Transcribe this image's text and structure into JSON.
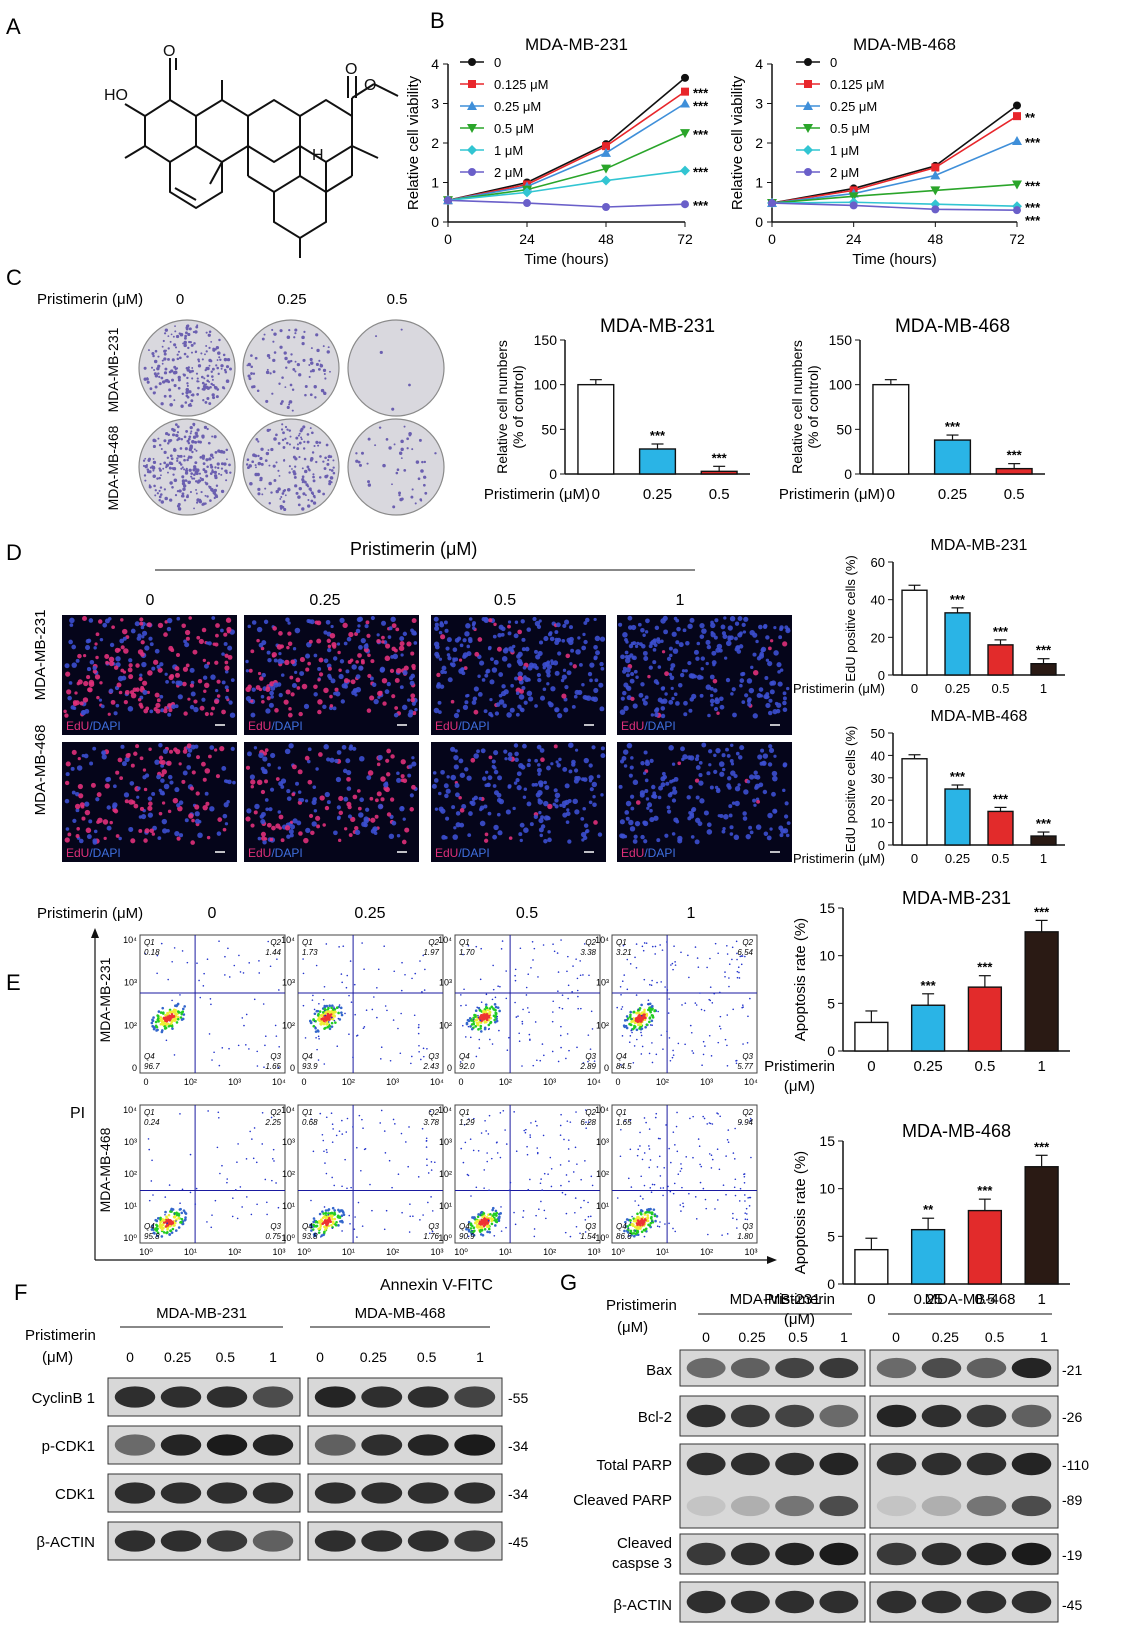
{
  "panel_labels": {
    "A": "A",
    "B": "B",
    "C": "C",
    "D": "D",
    "E": "E",
    "F": "F",
    "G": "G"
  },
  "colors": {
    "black": "#111111",
    "red": "#e8262b",
    "blue": "#3f8fd9",
    "green": "#2aa52a",
    "cyan": "#32c5d2",
    "purple": "#6a5fc9",
    "cyan_bar": "#2ab4e6",
    "red_bar": "#e22b2b",
    "dark_bar": "#2a1a14",
    "flow_quad": "#1a1aa0"
  },
  "B": {
    "ylabel": "Relative cell viability",
    "xlabel": "Time (hours)",
    "legend": [
      "0",
      "0.125 μM",
      "0.25 μM",
      "0.5 μM",
      "1 μM",
      "2 μM"
    ]
  },
  "C": {
    "treat_label": "Pristimerin (μM)",
    "doses": [
      "0",
      "0.25",
      "0.5"
    ],
    "rows": [
      "MDA-MB-231",
      "MDA-MB-468"
    ],
    "ylabel1": "Relative cell numbers",
    "ylabel2": "(% of control)"
  },
  "D": {
    "header": "Pristimerin (μM)",
    "doses": [
      "0",
      "0.25",
      "0.5",
      "1"
    ],
    "rows": [
      "MDA-MB-231",
      "MDA-MB-468"
    ],
    "stain_edu": "EdU",
    "stain_dapi": "/DAPI",
    "ylabel": "EdU positive cells (%)",
    "treat_label": "Pristimerin (μM)"
  },
  "E": {
    "treat_label": "Pristimerin (μM)",
    "doses": [
      "0",
      "0.25",
      "0.5",
      "1"
    ],
    "rows": [
      "MDA-MB-231",
      "MDA-MB-468"
    ],
    "pi_label": "PI",
    "annexin_label": "Annexin V-FITC",
    "ylabel": "Apoptosis rate (%)",
    "bar_treat1": "Pristimerin",
    "bar_treat2": "(μM)",
    "x_ticks_row1": [
      "0",
      "10²",
      "10³",
      "10⁴"
    ],
    "x_ticks_row2": [
      "10⁰",
      "10¹",
      "10²",
      "10³"
    ],
    "y_ticks_row1": [
      "10⁴",
      "10³",
      "10²",
      "0"
    ],
    "y_ticks_row2": [
      "10⁴",
      "10³",
      "10²",
      "10¹",
      "10⁰"
    ],
    "quadrants_231": [
      {
        "q1": "0.18",
        "q2": "1.44",
        "q3": "1.65",
        "q4": "96.7"
      },
      {
        "q1": "1.73",
        "q2": "1.97",
        "q3": "2.43",
        "q4": "93.9"
      },
      {
        "q1": "1.70",
        "q2": "3.38",
        "q3": "2.89",
        "q4": "92.0"
      },
      {
        "q1": "3.21",
        "q2": "6.54",
        "q3": "5.77",
        "q4": "84.5"
      }
    ],
    "quadrants_468": [
      {
        "q1": "0.24",
        "q2": "2.25",
        "q3": "0.75",
        "q4": "95.8"
      },
      {
        "q1": "0.68",
        "q2": "3.78",
        "q3": "1.76",
        "q4": "93.8"
      },
      {
        "q1": "1.29",
        "q2": "6.28",
        "q3": "1.54",
        "q4": "90.9"
      },
      {
        "q1": "1.65",
        "q2": "9.94",
        "q3": "1.80",
        "q4": "86.6"
      }
    ]
  },
  "F": {
    "treat1": "Pristimerin",
    "treat2": "(μM)",
    "groups": [
      "MDA-MB-231",
      "MDA-MB-468"
    ],
    "doses": [
      "0",
      "0.25",
      "0.5",
      "1"
    ],
    "proteins": [
      "CyclinB 1",
      "p-CDK1",
      "CDK1",
      "β-ACTIN"
    ],
    "mw": [
      "-55",
      "-34",
      "-34",
      "-45"
    ]
  },
  "G": {
    "treat1": "Pristimerin",
    "treat2": "(μM)",
    "groups": [
      "MDA-MB-231",
      "MDA-MB-468"
    ],
    "doses": [
      "0",
      "0.25",
      "0.5",
      "1"
    ],
    "proteins": [
      "Bax",
      "Bcl-2",
      "Total PARP",
      "Cleaved PARP",
      "Cleaved",
      "caspse 3",
      "β-ACTIN"
    ],
    "mw": [
      "-21",
      "-26",
      "-110",
      "-89",
      "-19",
      "-45"
    ]
  },
  "chart_data": [
    {
      "type": "line",
      "title": "MDA-MB-231",
      "xlabel": "Time (hours)",
      "ylabel": "Relative cell viability",
      "x": [
        0,
        24,
        48,
        72
      ],
      "xlim": [
        0,
        72
      ],
      "ylim": [
        0,
        4
      ],
      "legend": "top-left",
      "series": [
        {
          "name": "0",
          "values": [
            0.55,
            1.0,
            1.97,
            3.65
          ]
        },
        {
          "name": "0.125 μM",
          "values": [
            0.55,
            0.95,
            1.92,
            3.3
          ]
        },
        {
          "name": "0.25 μM",
          "values": [
            0.55,
            0.9,
            1.75,
            3.0
          ]
        },
        {
          "name": "0.5 μM",
          "values": [
            0.55,
            0.82,
            1.35,
            2.25
          ]
        },
        {
          "name": "1 μM",
          "values": [
            0.55,
            0.75,
            1.05,
            1.3
          ]
        },
        {
          "name": "2 μM",
          "values": [
            0.55,
            0.48,
            0.38,
            0.45
          ]
        }
      ],
      "annotations": [
        "***",
        "***",
        "***",
        "***",
        "***"
      ]
    },
    {
      "type": "line",
      "title": "MDA-MB-468",
      "xlabel": "Time (hours)",
      "ylabel": "Relative cell viability",
      "x": [
        0,
        24,
        48,
        72
      ],
      "xlim": [
        0,
        72
      ],
      "ylim": [
        0,
        4
      ],
      "legend": "top-left",
      "series": [
        {
          "name": "0",
          "values": [
            0.48,
            0.85,
            1.42,
            2.95
          ]
        },
        {
          "name": "0.125 μM",
          "values": [
            0.48,
            0.8,
            1.38,
            2.68
          ]
        },
        {
          "name": "0.25 μM",
          "values": [
            0.48,
            0.72,
            1.18,
            2.05
          ]
        },
        {
          "name": "0.5 μM",
          "values": [
            0.48,
            0.65,
            0.8,
            0.95
          ]
        },
        {
          "name": "1 μM",
          "values": [
            0.48,
            0.5,
            0.45,
            0.4
          ]
        },
        {
          "name": "2 μM",
          "values": [
            0.48,
            0.42,
            0.32,
            0.3
          ]
        }
      ],
      "annotations": [
        "**",
        "***",
        "***",
        "***",
        "***"
      ]
    },
    {
      "type": "bar",
      "title": "MDA-MB-231",
      "ylabel": "Relative cell numbers (% of control)",
      "categories": [
        "0",
        "0.25",
        "0.5"
      ],
      "values": [
        100,
        28,
        3
      ],
      "ylim": [
        0,
        150
      ],
      "sig": [
        "",
        "***",
        "***"
      ]
    },
    {
      "type": "bar",
      "title": "MDA-MB-468",
      "ylabel": "Relative cell numbers (% of control)",
      "categories": [
        "0",
        "0.25",
        "0.5"
      ],
      "values": [
        100,
        38,
        6
      ],
      "ylim": [
        0,
        150
      ],
      "sig": [
        "",
        "***",
        "***"
      ]
    },
    {
      "type": "bar",
      "title": "MDA-MB-231",
      "ylabel": "EdU positive cells (%)",
      "categories": [
        "0",
        "0.25",
        "0.5",
        "1"
      ],
      "values": [
        45,
        33,
        16,
        6
      ],
      "ylim": [
        0,
        60
      ],
      "sig": [
        "",
        "***",
        "***",
        "***"
      ]
    },
    {
      "type": "bar",
      "title": "MDA-MB-468",
      "ylabel": "EdU positive cells (%)",
      "categories": [
        "0",
        "0.25",
        "0.5",
        "1"
      ],
      "values": [
        38.5,
        25,
        15,
        4
      ],
      "ylim": [
        0,
        50
      ],
      "sig": [
        "",
        "***",
        "***",
        "***"
      ]
    },
    {
      "type": "bar",
      "title": "MDA-MB-231",
      "ylabel": "Apoptosis rate (%)",
      "categories": [
        "0",
        "0.25",
        "0.5",
        "1"
      ],
      "values": [
        3.0,
        4.8,
        6.7,
        12.5
      ],
      "ylim": [
        0,
        15
      ],
      "sig": [
        "",
        "***",
        "***",
        "***"
      ]
    },
    {
      "type": "bar",
      "title": "MDA-MB-468",
      "ylabel": "Apoptosis rate (%)",
      "categories": [
        "0",
        "0.25",
        "0.5",
        "1"
      ],
      "values": [
        3.6,
        5.7,
        7.7,
        12.3
      ],
      "ylim": [
        0,
        15
      ],
      "sig": [
        "",
        "**",
        "***",
        "***"
      ]
    }
  ]
}
